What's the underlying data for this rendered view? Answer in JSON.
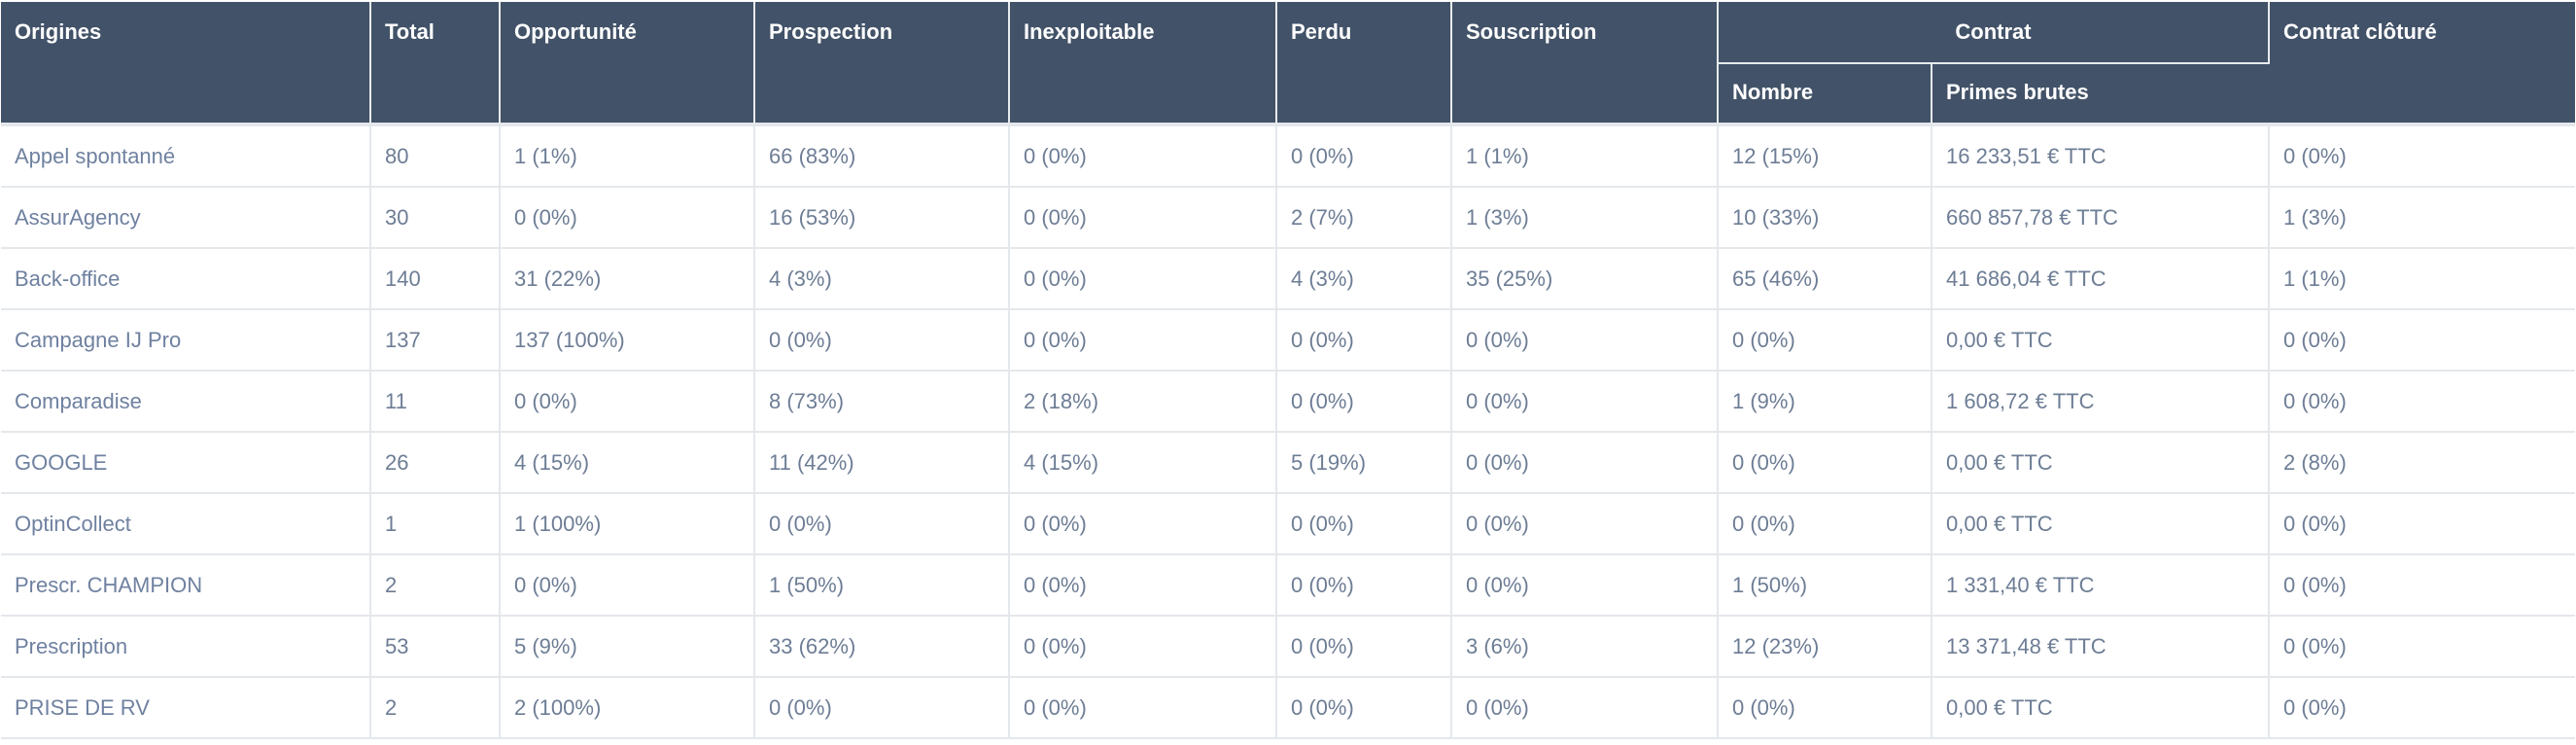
{
  "header": {
    "origines": "Origines",
    "total": "Total",
    "opportunite": "Opportunité",
    "prospection": "Prospection",
    "inexploitable": "Inexploitable",
    "perdu": "Perdu",
    "souscription": "Souscription",
    "contrat": "Contrat",
    "nombre": "Nombre",
    "primes_brutes": "Primes brutes",
    "contrat_cloture": "Contrat clôturé"
  },
  "rows": [
    [
      "Appel spontanné",
      "80",
      "1 (1%)",
      "66 (83%)",
      "0 (0%)",
      "0 (0%)",
      "1 (1%)",
      "12 (15%)",
      "16 233,51 € TTC",
      "0 (0%)"
    ],
    [
      "AssurAgency",
      "30",
      "0 (0%)",
      "16 (53%)",
      "0 (0%)",
      "2 (7%)",
      "1 (3%)",
      "10 (33%)",
      "660 857,78 € TTC",
      "1 (3%)"
    ],
    [
      "Back-office",
      "140",
      "31 (22%)",
      "4 (3%)",
      "0 (0%)",
      "4 (3%)",
      "35 (25%)",
      "65 (46%)",
      "41 686,04 € TTC",
      "1 (1%)"
    ],
    [
      "Campagne IJ Pro",
      "137",
      "137 (100%)",
      "0 (0%)",
      "0 (0%)",
      "0 (0%)",
      "0 (0%)",
      "0 (0%)",
      "0,00 € TTC",
      "0 (0%)"
    ],
    [
      "Comparadise",
      "11",
      "0 (0%)",
      "8 (73%)",
      "2 (18%)",
      "0 (0%)",
      "0 (0%)",
      "1 (9%)",
      "1 608,72 € TTC",
      "0 (0%)"
    ],
    [
      "GOOGLE",
      "26",
      "4 (15%)",
      "11 (42%)",
      "4 (15%)",
      "5 (19%)",
      "0 (0%)",
      "0 (0%)",
      "0,00 € TTC",
      "2 (8%)"
    ],
    [
      "OptinCollect",
      "1",
      "1 (100%)",
      "0 (0%)",
      "0 (0%)",
      "0 (0%)",
      "0 (0%)",
      "0 (0%)",
      "0,00 € TTC",
      "0 (0%)"
    ],
    [
      "Prescr. CHAMPION",
      "2",
      "0 (0%)",
      "1 (50%)",
      "0 (0%)",
      "0 (0%)",
      "0 (0%)",
      "1 (50%)",
      "1 331,40 € TTC",
      "0 (0%)"
    ],
    [
      "Prescription",
      "53",
      "5 (9%)",
      "33 (62%)",
      "0 (0%)",
      "0 (0%)",
      "3 (6%)",
      "12 (23%)",
      "13 371,48 € TTC",
      "0 (0%)"
    ],
    [
      "PRISE DE RV",
      "2",
      "2 (100%)",
      "0 (0%)",
      "0 (0%)",
      "0 (0%)",
      "0 (0%)",
      "0 (0%)",
      "0,00 € TTC",
      "0 (0%)"
    ]
  ]
}
